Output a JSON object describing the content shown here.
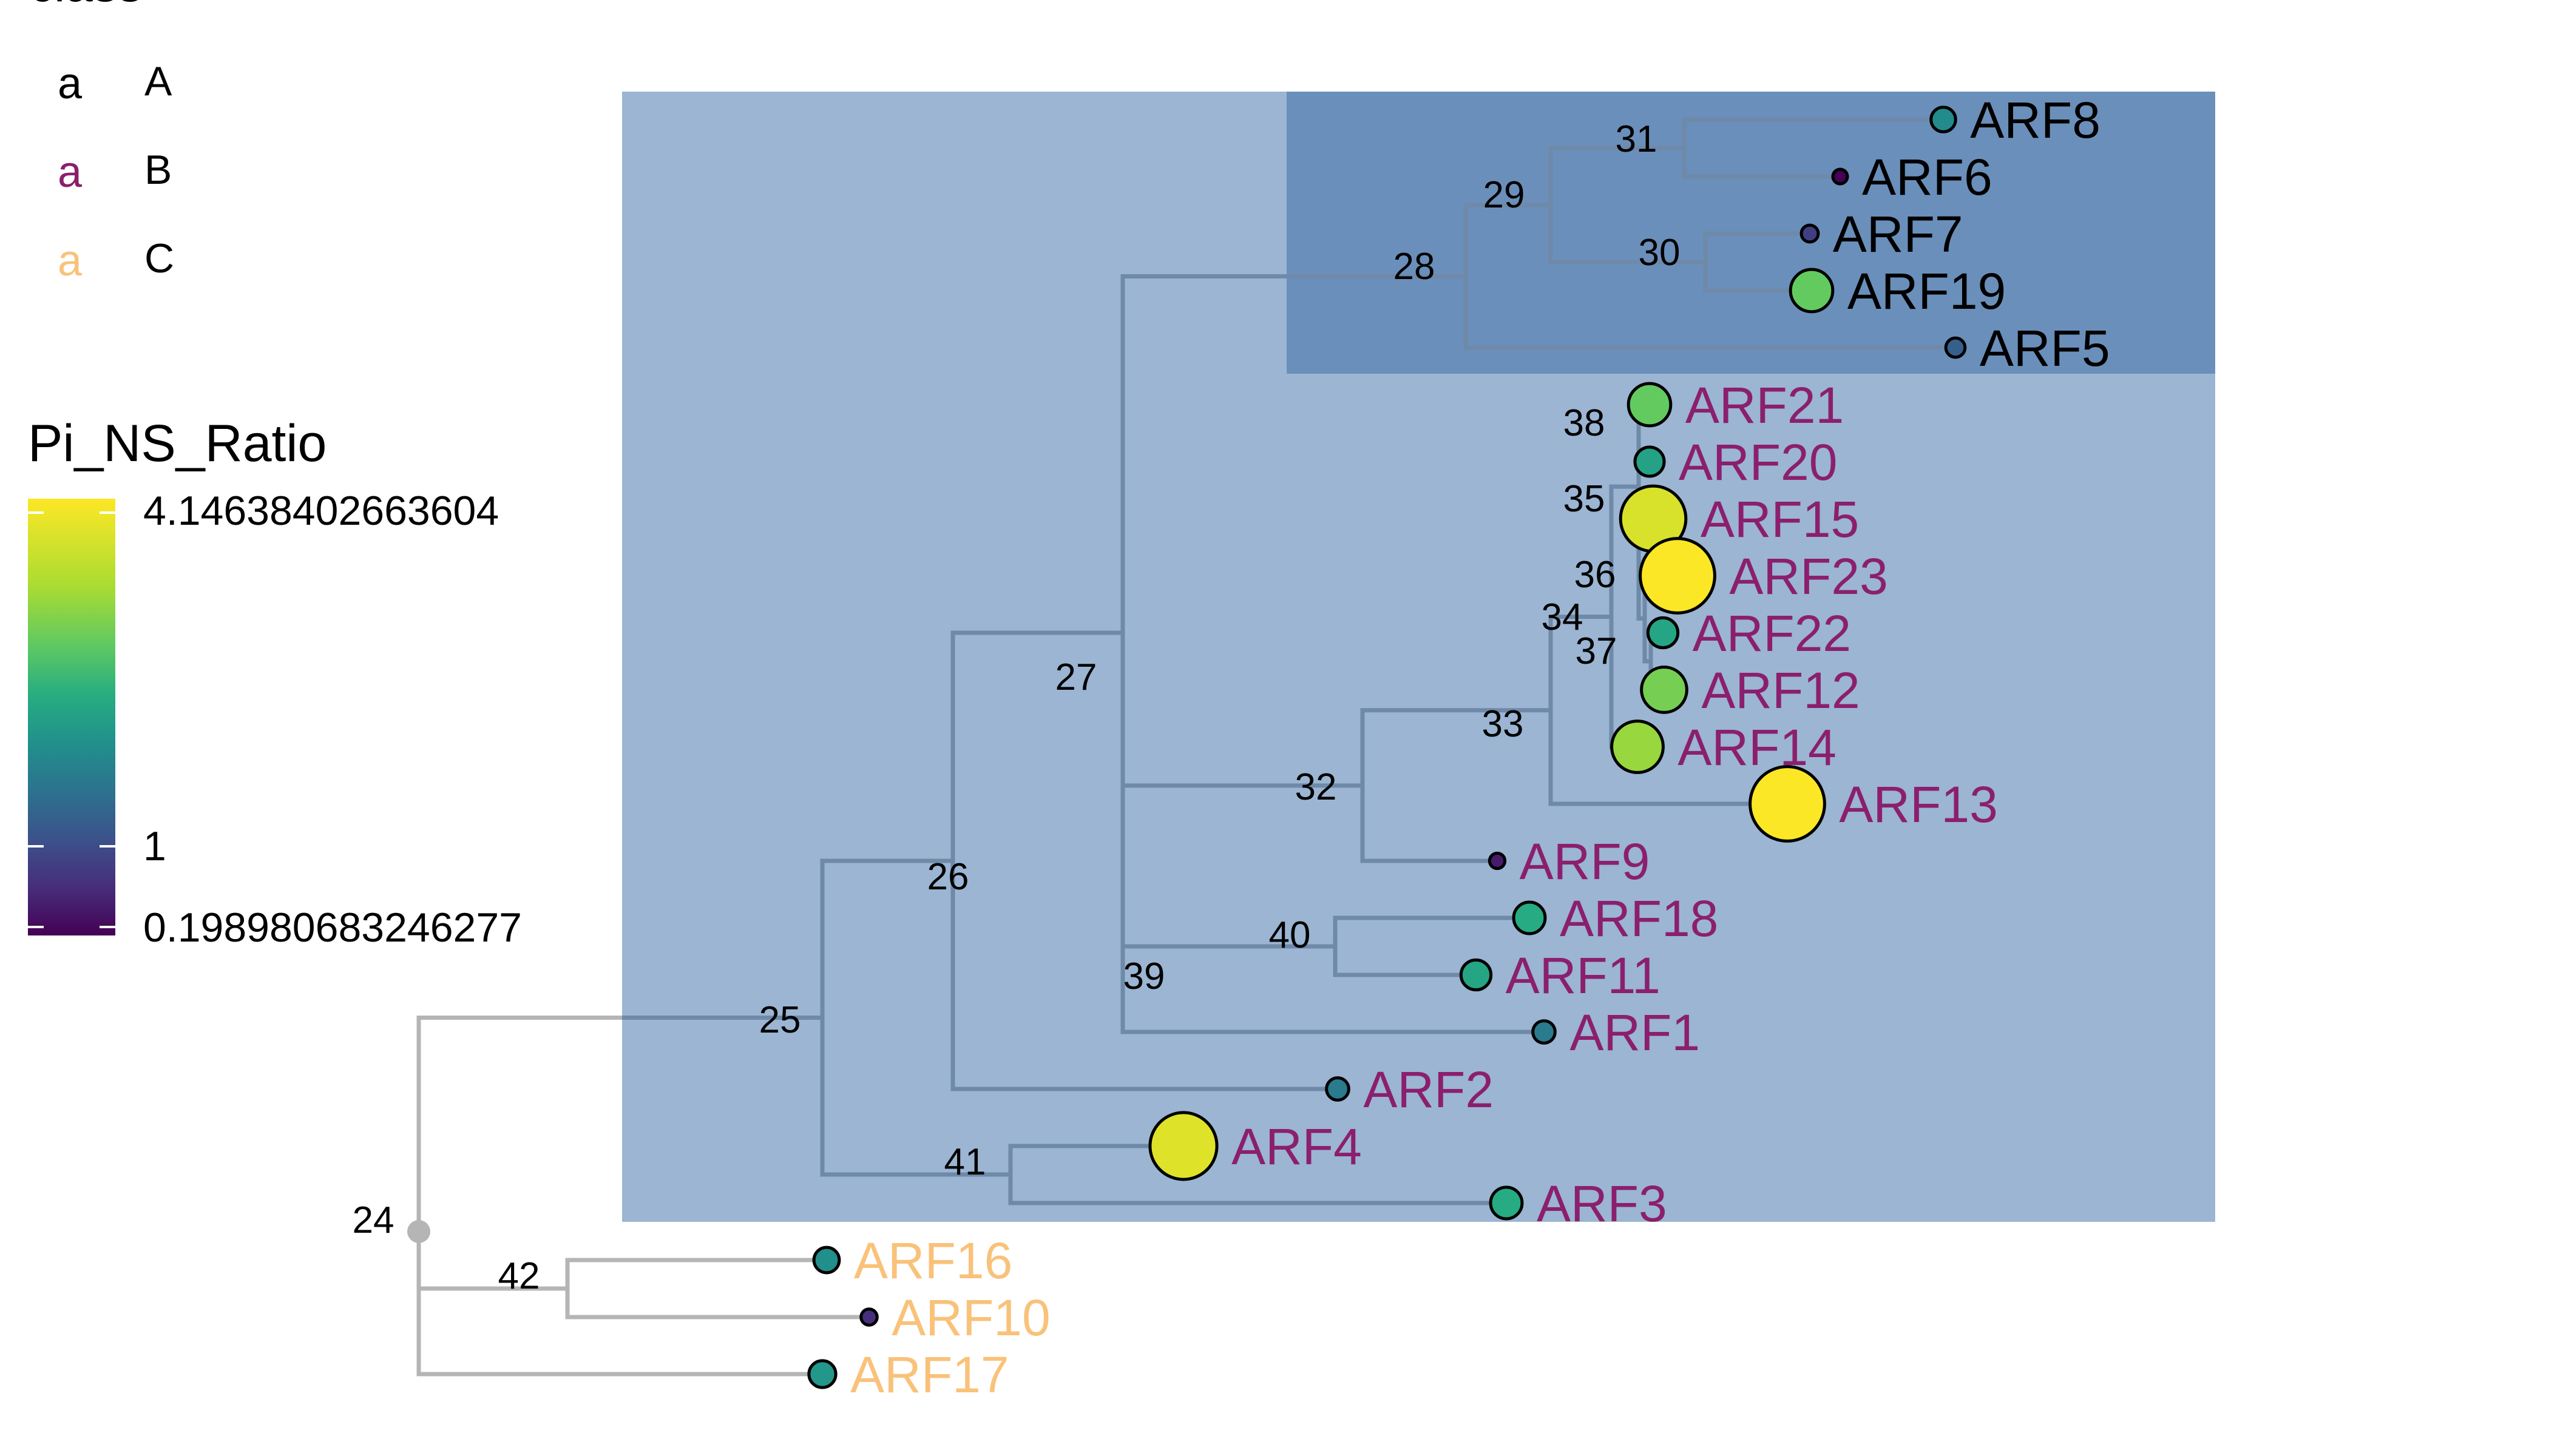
{
  "legend_class": {
    "title": "class",
    "items": [
      {
        "glyph": "a",
        "label": "A",
        "color": "#000000"
      },
      {
        "glyph": "a",
        "label": "B",
        "color": "#8B1F6E"
      },
      {
        "glyph": "a",
        "label": "C",
        "color": "#F9C27A"
      }
    ]
  },
  "legend_ratio": {
    "title": "Pi_NS_Ratio",
    "max_label": "4.14638402663604",
    "mid_label": "1",
    "min_label": "0.198980683246277",
    "min": 0.198980683246277,
    "mid": 1,
    "max": 4.14638402663604,
    "colormap": "viridis"
  },
  "colors": {
    "branch_gray": "#B5B5B5",
    "branch_in_highlight": "#6F89A8",
    "highlight_outer": "#9BB5D3",
    "highlight_inner": "#6A8FBB",
    "class_A": "#000000",
    "class_B": "#8B1F6E",
    "class_C": "#F9C27A"
  },
  "tree": {
    "root": "24",
    "internal_nodes": [
      "24",
      "25",
      "26",
      "27",
      "28",
      "29",
      "30",
      "31",
      "32",
      "33",
      "34",
      "35",
      "36",
      "37",
      "38",
      "39",
      "40",
      "41",
      "42"
    ],
    "edges": [
      [
        "24",
        "25"
      ],
      [
        "24",
        "42"
      ],
      [
        "24",
        "ARF17"
      ],
      [
        "42",
        "ARF16"
      ],
      [
        "42",
        "ARF10"
      ],
      [
        "25",
        "26"
      ],
      [
        "25",
        "41"
      ],
      [
        "41",
        "ARF4"
      ],
      [
        "41",
        "ARF3"
      ],
      [
        "26",
        "27"
      ],
      [
        "26",
        "ARF2"
      ],
      [
        "27",
        "28"
      ],
      [
        "27",
        "32"
      ],
      [
        "27",
        "39"
      ],
      [
        "28",
        "29"
      ],
      [
        "28",
        "ARF5"
      ],
      [
        "29",
        "31"
      ],
      [
        "29",
        "30"
      ],
      [
        "31",
        "ARF8"
      ],
      [
        "31",
        "ARF6"
      ],
      [
        "30",
        "ARF7"
      ],
      [
        "30",
        "ARF19"
      ],
      [
        "32",
        "33"
      ],
      [
        "32",
        "ARF9"
      ],
      [
        "33",
        "34"
      ],
      [
        "33",
        "ARF13"
      ],
      [
        "34",
        "38"
      ],
      [
        "34",
        "ARF14"
      ],
      [
        "38",
        "ARF21"
      ],
      [
        "38",
        "ARF20"
      ],
      [
        "38",
        "35"
      ],
      [
        "35",
        "ARF15"
      ],
      [
        "35",
        "36"
      ],
      [
        "36",
        "ARF23"
      ],
      [
        "36",
        "37"
      ],
      [
        "37",
        "ARF22"
      ],
      [
        "37",
        "ARF12"
      ],
      [
        "39",
        "40"
      ],
      [
        "39",
        "ARF1"
      ],
      [
        "40",
        "ARF18"
      ],
      [
        "40",
        "ARF11"
      ]
    ],
    "highlight_clades": [
      {
        "clade_root": "25",
        "level": "outer"
      },
      {
        "clade_root": "28",
        "level": "inner"
      }
    ],
    "tips": [
      {
        "name": "ARF8",
        "class": "A",
        "pi_ns_ratio": 0.85
      },
      {
        "name": "ARF6",
        "class": "A",
        "pi_ns_ratio": 0.2
      },
      {
        "name": "ARF7",
        "class": "A",
        "pi_ns_ratio": 0.35
      },
      {
        "name": "ARF19",
        "class": "A",
        "pi_ns_ratio": 2.0
      },
      {
        "name": "ARF5",
        "class": "A",
        "pi_ns_ratio": 0.5
      },
      {
        "name": "ARF21",
        "class": "B",
        "pi_ns_ratio": 2.0
      },
      {
        "name": "ARF20",
        "class": "B",
        "pi_ns_ratio": 1.15
      },
      {
        "name": "ARF15",
        "class": "B",
        "pi_ns_ratio": 3.5
      },
      {
        "name": "ARF23",
        "class": "B",
        "pi_ns_ratio": 4.1
      },
      {
        "name": "ARF22",
        "class": "B",
        "pi_ns_ratio": 1.2
      },
      {
        "name": "ARF12",
        "class": "B",
        "pi_ns_ratio": 2.2
      },
      {
        "name": "ARF14",
        "class": "B",
        "pi_ns_ratio": 2.6
      },
      {
        "name": "ARF13",
        "class": "B",
        "pi_ns_ratio": 4.1
      },
      {
        "name": "ARF9",
        "class": "B",
        "pi_ns_ratio": 0.25
      },
      {
        "name": "ARF18",
        "class": "B",
        "pi_ns_ratio": 1.3
      },
      {
        "name": "ARF11",
        "class": "B",
        "pi_ns_ratio": 1.2
      },
      {
        "name": "ARF1",
        "class": "B",
        "pi_ns_ratio": 0.7
      },
      {
        "name": "ARF2",
        "class": "B",
        "pi_ns_ratio": 0.7
      },
      {
        "name": "ARF4",
        "class": "B",
        "pi_ns_ratio": 3.6
      },
      {
        "name": "ARF3",
        "class": "B",
        "pi_ns_ratio": 1.3
      },
      {
        "name": "ARF16",
        "class": "C",
        "pi_ns_ratio": 0.9
      },
      {
        "name": "ARF10",
        "class": "C",
        "pi_ns_ratio": 0.3
      },
      {
        "name": "ARF17",
        "class": "C",
        "pi_ns_ratio": 1.0
      }
    ]
  }
}
